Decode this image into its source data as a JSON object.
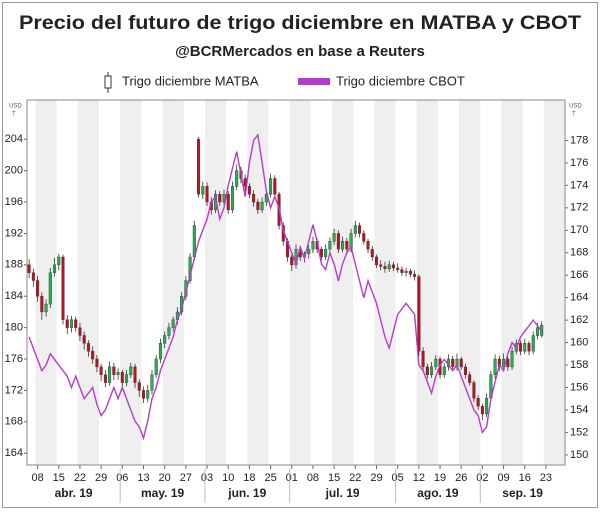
{
  "chart_data": {
    "type": "candlestick",
    "title": "Precio del futuro de trigo diciembre en MATBA y CBOT",
    "subtitle": "@BCRMercados en base a Reuters",
    "y_unit": [
      "USD",
      "T"
    ],
    "y2_unit": [
      "USD",
      "T"
    ],
    "months": [
      "abr. 19",
      "may. 19",
      "jun. 19",
      "jul. 19",
      "ago. 19",
      "sep. 19"
    ],
    "categories": [
      null,
      null,
      "08",
      null,
      null,
      null,
      null,
      "15",
      null,
      null,
      null,
      null,
      "22",
      null,
      null,
      null,
      null,
      "29",
      null,
      null,
      null,
      null,
      "06",
      null,
      null,
      null,
      null,
      "13",
      null,
      null,
      null,
      null,
      "20",
      null,
      null,
      null,
      null,
      "27",
      null,
      null,
      null,
      null,
      "03",
      null,
      null,
      null,
      null,
      "10",
      null,
      null,
      null,
      null,
      "18",
      null,
      null,
      null,
      null,
      "25",
      null,
      null,
      null,
      null,
      "01",
      null,
      null,
      null,
      null,
      "08",
      null,
      null,
      null,
      null,
      "15",
      null,
      null,
      null,
      null,
      "22",
      null,
      null,
      null,
      null,
      "29",
      null,
      null,
      null,
      null,
      "05",
      null,
      null,
      null,
      null,
      "12",
      null,
      null,
      null,
      null,
      "19",
      null,
      null,
      null,
      null,
      "26",
      null,
      null,
      null,
      null,
      "02",
      null,
      null,
      null,
      null,
      "09",
      null,
      null,
      null,
      null,
      "16",
      null,
      null,
      null,
      null,
      "23",
      null,
      null,
      null,
      null
    ],
    "ylim": [
      162.5,
      209
    ],
    "yticks": [
      164,
      168,
      172,
      176,
      180,
      184,
      188,
      192,
      196,
      200,
      204
    ],
    "y2lim": [
      149.1,
      181.6
    ],
    "y2ticks": [
      150,
      152,
      154,
      156,
      158,
      160,
      162,
      164,
      166,
      168,
      170,
      172,
      174,
      176,
      178
    ],
    "legend": "top",
    "series": [
      {
        "name": "Trigo diciembre MATBA",
        "type": "candlestick",
        "up_color": "#22b14c",
        "down_color": "#c0101e",
        "values": [
          [
            188,
            188.7,
            186.3,
            187
          ],
          [
            187,
            187.5,
            185.2,
            186
          ],
          [
            186,
            186.6,
            183.3,
            184
          ],
          [
            184,
            184.5,
            181,
            182
          ],
          [
            182,
            183.6,
            181.4,
            183
          ],
          [
            183,
            187.6,
            182.5,
            187
          ],
          [
            187,
            188.9,
            186.5,
            188
          ],
          [
            188,
            189.4,
            187.3,
            189
          ],
          [
            189,
            189.3,
            180.4,
            181
          ],
          [
            181,
            181.6,
            179.2,
            180
          ],
          [
            180,
            181.5,
            179.4,
            181
          ],
          [
            181,
            181.4,
            179.5,
            180
          ],
          [
            180,
            180.6,
            178.3,
            179
          ],
          [
            179,
            179.5,
            177.2,
            178
          ],
          [
            178,
            178.4,
            176.3,
            177
          ],
          [
            177,
            177.6,
            175.4,
            176
          ],
          [
            176,
            176.5,
            174.3,
            175
          ],
          [
            175,
            175.4,
            173.2,
            174
          ],
          [
            174,
            174.6,
            172.4,
            173
          ],
          [
            173,
            175.7,
            172.6,
            175
          ],
          [
            175,
            175.5,
            173.3,
            174
          ],
          [
            174,
            174.8,
            173.4,
            174.3
          ],
          [
            174.3,
            174.6,
            172.4,
            173
          ],
          [
            173,
            174.6,
            172.5,
            174
          ],
          [
            174,
            175.5,
            173.6,
            175
          ],
          [
            175,
            175.4,
            172.3,
            173
          ],
          [
            173,
            173.4,
            171.2,
            172
          ],
          [
            172,
            172.5,
            170.4,
            171
          ],
          [
            171,
            172.7,
            170.5,
            172
          ],
          [
            172,
            174.6,
            171.5,
            174
          ],
          [
            174,
            176.5,
            173.6,
            176
          ],
          [
            176,
            178.6,
            175.5,
            178
          ],
          [
            178,
            179.5,
            177.4,
            179
          ],
          [
            179,
            180.6,
            178.5,
            180
          ],
          [
            180,
            181.4,
            179.5,
            181
          ],
          [
            181,
            182.6,
            180.4,
            182
          ],
          [
            182,
            184.5,
            181.6,
            184
          ],
          [
            184,
            186.6,
            183.5,
            186
          ],
          [
            186,
            189.5,
            185.6,
            189
          ],
          [
            189,
            193.6,
            188.5,
            193
          ],
          [
            204,
            204.3,
            196.6,
            197
          ],
          [
            197,
            198.6,
            196.4,
            198
          ],
          [
            198,
            198.5,
            195.5,
            196
          ],
          [
            196,
            196.6,
            194.4,
            195
          ],
          [
            195,
            197.5,
            194.6,
            197
          ],
          [
            197,
            197.4,
            195.5,
            196
          ],
          [
            196,
            197.6,
            195.6,
            197
          ],
          [
            197,
            197.4,
            194.5,
            195
          ],
          [
            195,
            198.6,
            194.6,
            198
          ],
          [
            198,
            200.8,
            197.5,
            200
          ],
          [
            200,
            200.5,
            198.4,
            199
          ],
          [
            199,
            199.5,
            197.4,
            198
          ],
          [
            198,
            198.4,
            196.5,
            197
          ],
          [
            197,
            197.5,
            195.4,
            196
          ],
          [
            196,
            196.4,
            194.5,
            195
          ],
          [
            195,
            196.6,
            194.6,
            196
          ],
          [
            196,
            197.6,
            195.5,
            197
          ],
          [
            197,
            199.6,
            196.6,
            199
          ],
          [
            199,
            199.4,
            196.5,
            197
          ],
          [
            197,
            197.3,
            192.5,
            193
          ],
          [
            193,
            193.4,
            190.5,
            191
          ],
          [
            191,
            191.4,
            188.4,
            189
          ],
          [
            189,
            189.3,
            187.2,
            188
          ],
          [
            188,
            190.6,
            187.5,
            190
          ],
          [
            190,
            190.4,
            188.5,
            189
          ],
          [
            189,
            189.7,
            188.3,
            189.4
          ],
          [
            189.4,
            190.5,
            188.8,
            190
          ],
          [
            190,
            191.6,
            189.5,
            191
          ],
          [
            191,
            191.4,
            189.5,
            190
          ],
          [
            190,
            190.3,
            188.5,
            189
          ],
          [
            189,
            190.6,
            188.6,
            190
          ],
          [
            190,
            191.5,
            189.6,
            191
          ],
          [
            191,
            192.6,
            190.5,
            192
          ],
          [
            192,
            192.4,
            189.5,
            190
          ],
          [
            190,
            191.6,
            189.6,
            191
          ],
          [
            191,
            191.4,
            189.4,
            190
          ],
          [
            190,
            192.6,
            189.6,
            192
          ],
          [
            192,
            193.6,
            191.5,
            193
          ],
          [
            193,
            193.4,
            191.5,
            192
          ],
          [
            192,
            192.4,
            190.6,
            191
          ],
          [
            191,
            191.3,
            189.5,
            190
          ],
          [
            190,
            190.4,
            188.5,
            189
          ],
          [
            189,
            189.3,
            187.6,
            188
          ],
          [
            188,
            188.6,
            187.3,
            187.8
          ],
          [
            187.8,
            188.4,
            187,
            187.5
          ],
          [
            187.5,
            188.5,
            187.1,
            188
          ],
          [
            188,
            188.4,
            187.2,
            187.6
          ],
          [
            187.6,
            188.2,
            187,
            187.4
          ],
          [
            187.4,
            187.8,
            186.6,
            187
          ],
          [
            187,
            187.6,
            186.5,
            187.2
          ],
          [
            187.2,
            187.5,
            186.4,
            186.8
          ],
          [
            186.8,
            187.3,
            186,
            186.5
          ],
          [
            186.5,
            186.8,
            176.4,
            177
          ],
          [
            177,
            177.5,
            174.4,
            175
          ],
          [
            175,
            175.4,
            173.5,
            174
          ],
          [
            174,
            175.6,
            173.6,
            175
          ],
          [
            175,
            176.5,
            174.6,
            176
          ],
          [
            176,
            176.3,
            173.5,
            174
          ],
          [
            174,
            175.5,
            173.6,
            175
          ],
          [
            175,
            176.6,
            174.5,
            176
          ],
          [
            176,
            176.4,
            174.6,
            175
          ],
          [
            175,
            176.7,
            174.5,
            176
          ],
          [
            176,
            176.3,
            174.6,
            175
          ],
          [
            175,
            175.4,
            173.5,
            174
          ],
          [
            174,
            174.4,
            172.6,
            173
          ],
          [
            173,
            173.3,
            170.5,
            171
          ],
          [
            171,
            171.4,
            169.5,
            170
          ],
          [
            170,
            170.3,
            168.2,
            169
          ],
          [
            169,
            171.6,
            168.6,
            171
          ],
          [
            171,
            174.5,
            170.6,
            174
          ],
          [
            174,
            176.6,
            173.5,
            176
          ],
          [
            176,
            176.4,
            174.5,
            175
          ],
          [
            175,
            176.7,
            174.6,
            176
          ],
          [
            176,
            176.3,
            174.5,
            175
          ],
          [
            175,
            177.6,
            174.6,
            177
          ],
          [
            177,
            178.5,
            176.6,
            178
          ],
          [
            178,
            178.4,
            176.5,
            177
          ],
          [
            177,
            178.6,
            176.6,
            178
          ],
          [
            178,
            178.3,
            176.5,
            177
          ],
          [
            177,
            179.5,
            176.6,
            179
          ],
          [
            179,
            180.6,
            178.5,
            180
          ],
          [
            179,
            180.8,
            178.7,
            180.3
          ],
          null,
          null,
          null,
          null,
          null
        ]
      },
      {
        "name": "Trigo diciembre CBOT",
        "type": "line",
        "color": "#b43cc8",
        "axis": "y2",
        "values": [
          160.5,
          159.5,
          158.5,
          157.5,
          158,
          159,
          158.5,
          158,
          157.5,
          157,
          156,
          157,
          156,
          155,
          155.5,
          156,
          154.5,
          153.5,
          154,
          155,
          156,
          155,
          156,
          155,
          154,
          153,
          152.5,
          151.5,
          153,
          155,
          156,
          157.5,
          158.5,
          159.5,
          160.5,
          162,
          163,
          164.5,
          166,
          167.5,
          169,
          170,
          171,
          172.5,
          173,
          171,
          172,
          174,
          175.5,
          177,
          175,
          173,
          176,
          178,
          178.5,
          176,
          173.5,
          172,
          173,
          172,
          170,
          169,
          168,
          167,
          168.5,
          167.5,
          169,
          170.5,
          169,
          167,
          166.5,
          168,
          167,
          165.5,
          167,
          168,
          168.5,
          167,
          165.5,
          164,
          165.5,
          164.5,
          163.5,
          162,
          160.5,
          159.5,
          161,
          162.5,
          163,
          163.5,
          163,
          162.5,
          158,
          157.5,
          156.5,
          155.5,
          157,
          158,
          158.5,
          158,
          157.5,
          158,
          157,
          156,
          155,
          154,
          153.5,
          152,
          152.5,
          155,
          156.5,
          158,
          157.5,
          159,
          160,
          159.5,
          160.5,
          161,
          161.5,
          162,
          161.5,
          161,
          null,
          null,
          null,
          null,
          null
        ]
      }
    ]
  }
}
